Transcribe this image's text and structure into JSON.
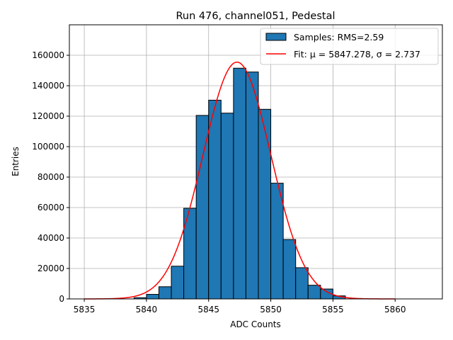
{
  "chart_data": {
    "type": "bar",
    "title": "Run 476, channel051, Pedestal",
    "xlabel": "ADC Counts",
    "ylabel": "Entries",
    "xlim": [
      5833.8,
      5863.8
    ],
    "ylim": [
      0,
      180000
    ],
    "xticks": [
      5835,
      5840,
      5845,
      5850,
      5855,
      5860
    ],
    "yticks": [
      0,
      20000,
      40000,
      60000,
      80000,
      100000,
      120000,
      140000,
      160000
    ],
    "grid": true,
    "legend_position": "top-right",
    "bins": {
      "edges": [
        5839.0,
        5840.0,
        5841.0,
        5842.0,
        5843.0,
        5844.0,
        5845.0,
        5846.0,
        5847.0,
        5848.0,
        5849.0,
        5850.0,
        5851.0,
        5852.0,
        5853.0,
        5854.0,
        5855.0,
        5856.0
      ],
      "counts": [
        800,
        3000,
        8000,
        21500,
        59500,
        120500,
        130500,
        122000,
        151500,
        149000,
        124500,
        76000,
        39000,
        20500,
        9000,
        6500,
        2000
      ]
    },
    "series": [
      {
        "name": "Samples: RMS=2.59",
        "kind": "histogram",
        "color": "#1f77b4",
        "edgecolor": "#000000"
      },
      {
        "name": "Fit: μ = 5847.278, σ = 2.737",
        "kind": "gaussian-fit",
        "color": "#ff0000",
        "mu": 5847.278,
        "sigma": 2.737,
        "amplitude": 155500,
        "x_range": [
          5835,
          5860
        ]
      }
    ]
  }
}
